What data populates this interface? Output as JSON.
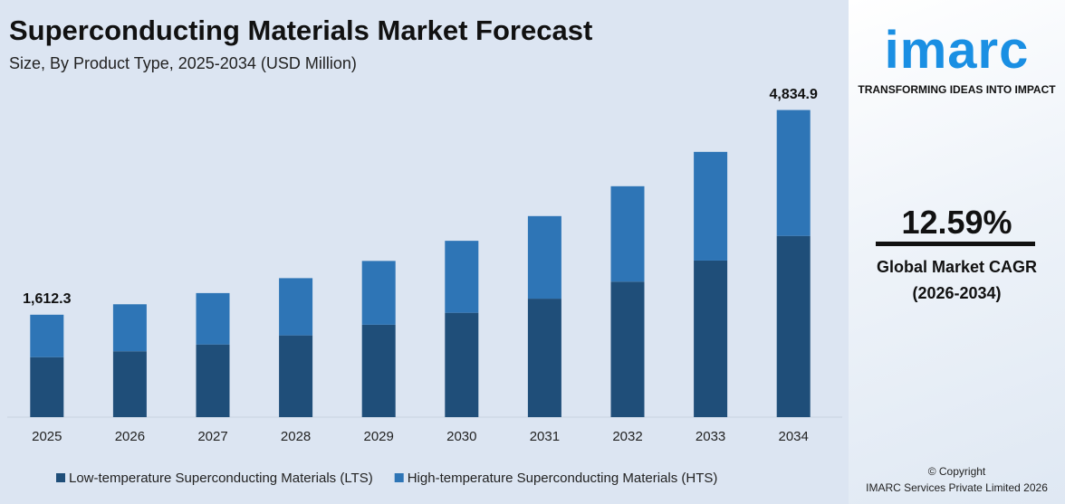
{
  "chart_data": {
    "type": "stacked-bar",
    "title": "Superconducting Materials Market Forecast",
    "subtitle": "Size, By Product Type, 2025-2034 (USD Million)",
    "categories": [
      "2025",
      "2026",
      "2027",
      "2028",
      "2029",
      "2030",
      "2031",
      "2032",
      "2033",
      "2034"
    ],
    "series": [
      {
        "name": "Low-temperature Superconducting Materials (LTS)",
        "color": "#1f4e79",
        "values": [
          944,
          1037,
          1144,
          1287,
          1455,
          1643,
          1865,
          2133,
          2465,
          2853
        ]
      },
      {
        "name": "High-temperature Superconducting Materials (HTS)",
        "color": "#2e75b6",
        "values": [
          668.3,
          740,
          809,
          901,
          1004,
          1133,
          1300,
          1502,
          1711,
          1981.9
        ]
      }
    ],
    "annotations": [
      {
        "x": "2025",
        "value": 1612.3,
        "label": "1,612.3"
      },
      {
        "x": "2034",
        "value": 4834.9,
        "label": "4,834.9"
      }
    ],
    "ylim": [
      0,
      5000
    ],
    "grid": false,
    "legend": "bottom"
  },
  "sidebar": {
    "logo": "imarc",
    "tagline": "TRANSFORMING IDEAS INTO IMPACT",
    "cagr": "12.59%",
    "cagr_label": "Global Market CAGR",
    "cagr_period": "(2026-2034)",
    "copyright": "© Copyright",
    "company": "IMARC Services Private Limited 2026"
  }
}
